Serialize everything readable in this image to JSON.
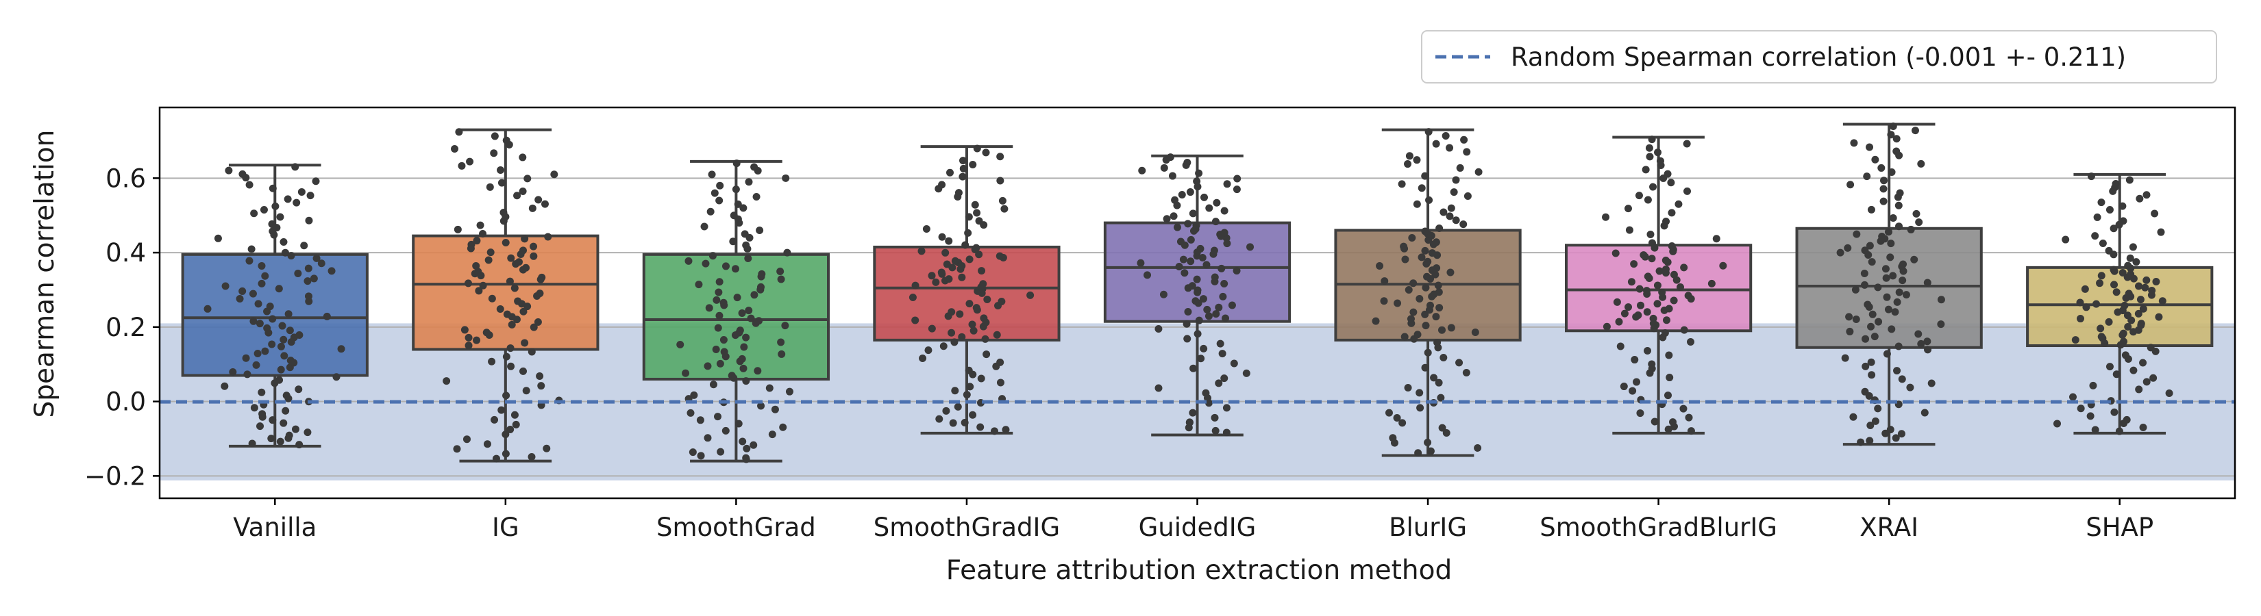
{
  "chart_data": {
    "type": "box",
    "title": "",
    "xlabel": "Feature attribution extraction method",
    "ylabel": "Spearman correlation",
    "ylim": [
      -0.26,
      0.79
    ],
    "yticks": [
      -0.2,
      0.0,
      0.2,
      0.4,
      0.6
    ],
    "ytick_labels": [
      "−0.2",
      "0.0",
      "0.2",
      "0.4",
      "0.6"
    ],
    "grid": "horizontal",
    "legend": {
      "placement": "upper-right-outside",
      "entries": [
        "Random Spearman correlation (-0.001 +- 0.211)"
      ]
    },
    "reference_line": {
      "label": "Random Spearman correlation (-0.001 +- 0.211)",
      "mean": -0.001,
      "std": 0.211,
      "color": "#4c72b0",
      "band_color": "#c9d4e7"
    },
    "categories": [
      "Vanilla",
      "IG",
      "SmoothGrad",
      "SmoothGradIG",
      "GuidedIG",
      "BlurIG",
      "SmoothGradBlurIG",
      "XRAI",
      "SHAP"
    ],
    "colors": [
      "#4c72b0",
      "#dd8452",
      "#55a868",
      "#c44e52",
      "#8172b3",
      "#937860",
      "#da8bc3",
      "#8c8c8c",
      "#ccb974"
    ],
    "boxes": [
      {
        "min": -0.12,
        "q1": 0.07,
        "median": 0.225,
        "q3": 0.395,
        "max": 0.635
      },
      {
        "min": -0.16,
        "q1": 0.14,
        "median": 0.315,
        "q3": 0.445,
        "max": 0.73
      },
      {
        "min": -0.16,
        "q1": 0.06,
        "median": 0.22,
        "q3": 0.395,
        "max": 0.645
      },
      {
        "min": -0.085,
        "q1": 0.165,
        "median": 0.305,
        "q3": 0.415,
        "max": 0.685
      },
      {
        "min": -0.09,
        "q1": 0.215,
        "median": 0.36,
        "q3": 0.48,
        "max": 0.66
      },
      {
        "min": -0.145,
        "q1": 0.165,
        "median": 0.315,
        "q3": 0.46,
        "max": 0.73
      },
      {
        "min": -0.085,
        "q1": 0.19,
        "median": 0.3,
        "q3": 0.42,
        "max": 0.71
      },
      {
        "min": -0.115,
        "q1": 0.145,
        "median": 0.31,
        "q3": 0.465,
        "max": 0.745
      },
      {
        "min": -0.085,
        "q1": 0.15,
        "median": 0.26,
        "q3": 0.36,
        "max": 0.61
      }
    ],
    "points_per_method": 100
  }
}
